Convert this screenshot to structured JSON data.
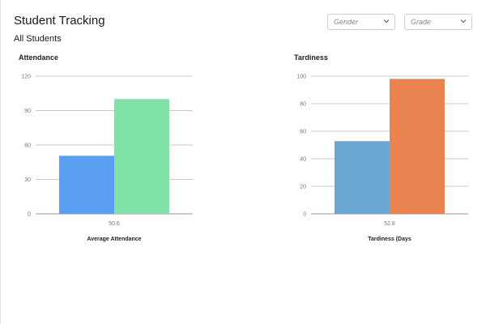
{
  "header": {
    "title": "Student Tracking",
    "subtitle": "All Students"
  },
  "filters": {
    "gender": {
      "placeholder": "Gender",
      "icon": "chevron-down-icon"
    },
    "grade": {
      "placeholder": "Grade",
      "icon": "chevron-down-icon"
    }
  },
  "chart_data": [
    {
      "type": "bar",
      "title": "Attendance",
      "categories": [
        "50.6"
      ],
      "series": [
        {
          "values": [
            50.6
          ],
          "color": "#5b9ff5"
        },
        {
          "values": [
            100
          ],
          "color": "#80e2a9"
        }
      ],
      "xlabel": "Average Attendance",
      "ylabel": "",
      "ylim": [
        0,
        120
      ],
      "yticks": [
        0,
        30,
        60,
        90,
        120
      ],
      "grid": true
    },
    {
      "type": "bar",
      "title": "Tardiness",
      "categories": [
        "52.8"
      ],
      "series": [
        {
          "values": [
            52.8
          ],
          "color": "#6ba6d3"
        },
        {
          "values": [
            98
          ],
          "color": "#eb8350"
        }
      ],
      "xlabel": "Tardiness (Days",
      "ylabel": "",
      "ylim": [
        0,
        100
      ],
      "yticks": [
        0,
        20,
        40,
        60,
        80,
        100
      ],
      "grid": true
    }
  ]
}
